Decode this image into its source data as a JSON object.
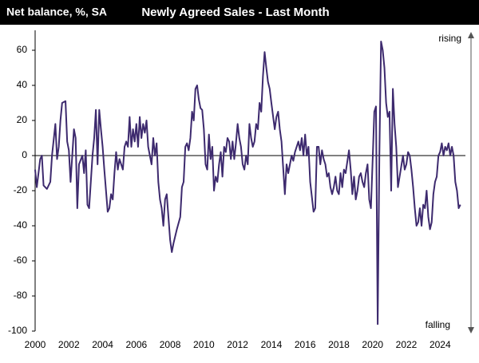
{
  "chart_data": {
    "type": "line",
    "title": "Newly Agreed Sales - Last Month",
    "y_label": "Net balance, %, SA",
    "annotations": [
      "rising",
      "falling"
    ],
    "color": "#3d2a6e",
    "x": [
      2000.0,
      2000.1,
      2000.3,
      2000.4,
      2000.5,
      2000.7,
      2000.9,
      2001.0,
      2001.2,
      2001.3,
      2001.4,
      2001.5,
      2001.6,
      2001.8,
      2001.9,
      2002.0,
      2002.1,
      2002.3,
      2002.4,
      2002.5,
      2002.6,
      2002.8,
      2002.9,
      2003.0,
      2003.1,
      2003.2,
      2003.4,
      2003.5,
      2003.6,
      2003.7,
      2003.8,
      2003.9,
      2004.0,
      2004.1,
      2004.2,
      2004.3,
      2004.4,
      2004.5,
      2004.6,
      2004.7,
      2004.8,
      2004.9,
      2005.0,
      2005.2,
      2005.3,
      2005.4,
      2005.5,
      2005.6,
      2005.7,
      2005.8,
      2005.9,
      2006.0,
      2006.1,
      2006.2,
      2006.3,
      2006.4,
      2006.5,
      2006.6,
      2006.7,
      2006.8,
      2006.9,
      2007.0,
      2007.1,
      2007.2,
      2007.3,
      2007.4,
      2007.5,
      2007.6,
      2007.7,
      2007.8,
      2007.9,
      2008.0,
      2008.1,
      2008.2,
      2008.4,
      2008.6,
      2008.7,
      2008.8,
      2008.9,
      2009.0,
      2009.1,
      2009.2,
      2009.3,
      2009.4,
      2009.5,
      2009.6,
      2009.7,
      2009.8,
      2009.9,
      2010.0,
      2010.1,
      2010.2,
      2010.3,
      2010.4,
      2010.5,
      2010.6,
      2010.7,
      2010.8,
      2010.9,
      2011.0,
      2011.1,
      2011.2,
      2011.3,
      2011.4,
      2011.5,
      2011.6,
      2011.7,
      2011.8,
      2011.9,
      2012.0,
      2012.1,
      2012.2,
      2012.3,
      2012.4,
      2012.5,
      2012.6,
      2012.7,
      2012.8,
      2012.9,
      2013.0,
      2013.1,
      2013.2,
      2013.3,
      2013.4,
      2013.5,
      2013.6,
      2013.7,
      2013.8,
      2013.9,
      2014.0,
      2014.2,
      2014.3,
      2014.4,
      2014.5,
      2014.6,
      2014.8,
      2014.9,
      2015.0,
      2015.1,
      2015.2,
      2015.3,
      2015.4,
      2015.6,
      2015.7,
      2015.8,
      2015.9,
      2016.0,
      2016.1,
      2016.2,
      2016.3,
      2016.5,
      2016.6,
      2016.7,
      2016.8,
      2016.9,
      2017.0,
      2017.1,
      2017.2,
      2017.3,
      2017.4,
      2017.5,
      2017.6,
      2017.7,
      2017.8,
      2017.9,
      2018.0,
      2018.1,
      2018.2,
      2018.3,
      2018.4,
      2018.6,
      2018.7,
      2018.8,
      2018.9,
      2019.0,
      2019.1,
      2019.2,
      2019.3,
      2019.4,
      2019.5,
      2019.6,
      2019.7,
      2019.8,
      2019.9,
      2020.0,
      2020.1,
      2020.2,
      2020.3,
      2020.4,
      2020.5,
      2020.6,
      2020.7,
      2020.8,
      2020.9,
      2021.0,
      2021.1,
      2021.2,
      2021.3,
      2021.4,
      2021.5,
      2021.6,
      2021.8,
      2021.9,
      2022.0,
      2022.1,
      2022.2,
      2022.3,
      2022.4,
      2022.5,
      2022.6,
      2022.7,
      2022.8,
      2022.9,
      2023.0,
      2023.1,
      2023.2,
      2023.3,
      2023.4,
      2023.5,
      2023.6,
      2023.7,
      2023.8,
      2023.9,
      2024.0,
      2024.1,
      2024.2,
      2024.3,
      2024.4,
      2024.5,
      2024.6,
      2024.7,
      2024.8,
      2024.9,
      2025.0,
      2025.1,
      2025.2
    ],
    "values": [
      -8,
      -18,
      -2,
      0,
      -17,
      -19,
      -15,
      0,
      18,
      -2,
      5,
      20,
      30,
      31,
      8,
      3,
      -15,
      15,
      10,
      -30,
      -5,
      0,
      -10,
      3,
      -28,
      -30,
      0,
      10,
      26,
      -5,
      26,
      15,
      5,
      -8,
      -20,
      -32,
      -30,
      -22,
      -25,
      -10,
      2,
      -8,
      -2,
      -8,
      5,
      8,
      5,
      22,
      5,
      15,
      8,
      18,
      5,
      22,
      10,
      18,
      13,
      20,
      5,
      0,
      -5,
      10,
      0,
      7,
      -15,
      -25,
      -30,
      -40,
      -25,
      -22,
      -35,
      -48,
      -55,
      -50,
      -42,
      -35,
      -18,
      -15,
      5,
      7,
      3,
      10,
      25,
      20,
      38,
      40,
      32,
      27,
      26,
      15,
      -5,
      -8,
      12,
      -2,
      5,
      -20,
      -12,
      -15,
      -5,
      2,
      -12,
      5,
      2,
      10,
      8,
      -2,
      8,
      -2,
      7,
      18,
      10,
      5,
      -5,
      -8,
      0,
      -5,
      18,
      10,
      5,
      8,
      18,
      15,
      30,
      25,
      45,
      59,
      50,
      42,
      38,
      30,
      15,
      22,
      25,
      15,
      8,
      -22,
      -5,
      -10,
      -5,
      0,
      -3,
      2,
      8,
      3,
      10,
      0,
      12,
      0,
      5,
      -15,
      -32,
      -30,
      5,
      5,
      -5,
      3,
      -2,
      -5,
      -12,
      -10,
      -18,
      -22,
      -18,
      -12,
      -20,
      -22,
      -10,
      -18,
      -8,
      -10,
      3,
      -8,
      -22,
      -12,
      -25,
      -20,
      -12,
      -10,
      -15,
      -18,
      -10,
      -5,
      -25,
      -30,
      -3,
      25,
      28,
      -96,
      0,
      65,
      60,
      50,
      30,
      22,
      25,
      -20,
      38,
      18,
      5,
      -18,
      -12,
      0,
      -8,
      -5,
      2,
      0,
      -8,
      -18,
      -30,
      -40,
      -38,
      -30,
      -40,
      -28,
      -30,
      -20,
      -35,
      -42,
      -38,
      -22,
      -15,
      -12,
      0,
      2,
      7,
      0,
      5,
      3,
      7,
      0,
      5,
      0,
      -15,
      -20,
      -30,
      -28
    ],
    "xlim": [
      2000,
      2025.5
    ],
    "xticks": [
      2000,
      2002,
      2004,
      2006,
      2008,
      2010,
      2012,
      2014,
      2016,
      2018,
      2020,
      2022,
      2024
    ],
    "ylim": [
      -100,
      70
    ],
    "yticks": [
      -100,
      -80,
      -60,
      -40,
      -20,
      0,
      20,
      40,
      60
    ]
  }
}
